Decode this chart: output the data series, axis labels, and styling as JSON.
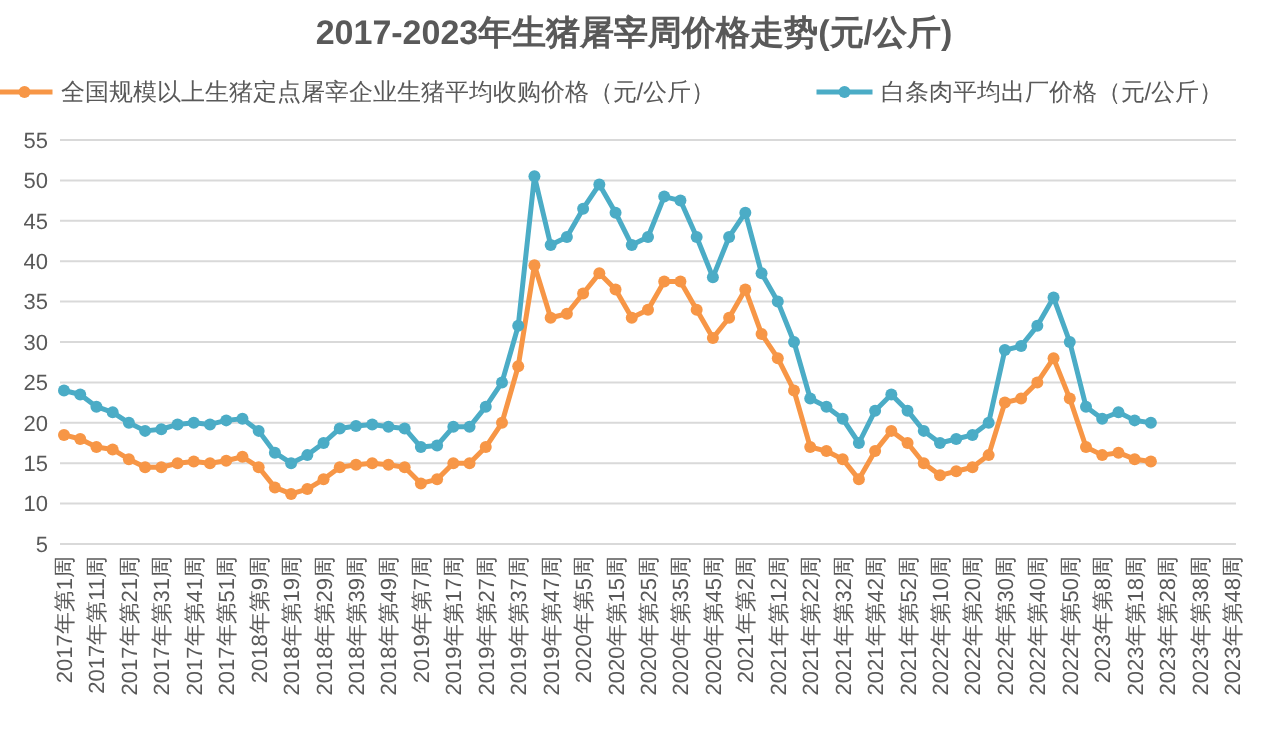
{
  "chart_data": {
    "type": "line",
    "title": "2017-2023年生猪屠宰周价格走势(元/公斤)",
    "categories": [
      "2017年第1周",
      null,
      "2017年第11周",
      null,
      "2017年第21周",
      null,
      "2017年第31周",
      null,
      "2017年第41周",
      null,
      "2017年第51周",
      null,
      "2018年第9周",
      null,
      "2018年第19周",
      null,
      "2018年第29周",
      null,
      "2018年第39周",
      null,
      "2018年第49周",
      null,
      "2019年第7周",
      null,
      "2019年第17周",
      null,
      "2019年第27周",
      null,
      "2019年第37周",
      null,
      "2019年第47周",
      null,
      "2020年第5周",
      null,
      "2020年第15周",
      null,
      "2020年第25周",
      null,
      "2020年第35周",
      null,
      "2020年第45周",
      null,
      "2021年第2周",
      null,
      "2021年第12周",
      null,
      "2021年第22周",
      null,
      "2021年第32周",
      null,
      "2021年第42周",
      null,
      "2021年第52周",
      null,
      "2022年第10周",
      null,
      "2022年第20周",
      null,
      "2022年第30周",
      null,
      "2022年第40周",
      null,
      "2022年第50周",
      null,
      "2023年第8周",
      null,
      "2023年第18周",
      null,
      "2023年第28周",
      null,
      "2023年第38周",
      null,
      "2023年第48周"
    ],
    "series": [
      {
        "name": "全国规模以上生猪定点屠宰企业生猪平均收购价格（元/公斤）",
        "color": "#f79646",
        "values": [
          18.5,
          18,
          17,
          16.7,
          15.5,
          14.5,
          14.5,
          15,
          15.2,
          15,
          15.3,
          15.8,
          14.5,
          12,
          11.2,
          11.8,
          13,
          14.5,
          14.8,
          15,
          14.8,
          14.5,
          12.5,
          13,
          15,
          15,
          17,
          20,
          27,
          39.5,
          33,
          33.5,
          36,
          38.5,
          36.5,
          33,
          34,
          37.5,
          37.5,
          34,
          30.5,
          33,
          36.5,
          31,
          28,
          24,
          17,
          16.5,
          15.5,
          13,
          16.5,
          19,
          17.5,
          15,
          13.5,
          14,
          14.5,
          16,
          22.5,
          23,
          25,
          28,
          23,
          17,
          16,
          16.3,
          15.5,
          15.2,
          null,
          null,
          null,
          null,
          null
        ]
      },
      {
        "name": "白条肉平均出厂价格（元/公斤）",
        "color": "#4bacc6",
        "values": [
          24,
          23.5,
          22,
          21.3,
          20,
          19,
          19.2,
          19.8,
          20,
          19.8,
          20.3,
          20.5,
          19,
          16.3,
          15,
          16,
          17.5,
          19.3,
          19.6,
          19.8,
          19.5,
          19.3,
          17,
          17.2,
          19.5,
          19.5,
          22,
          25,
          32,
          50.5,
          42,
          43,
          46.5,
          49.5,
          46,
          42,
          43,
          48,
          47.5,
          43,
          38,
          43,
          46,
          38.5,
          35,
          30,
          23,
          22,
          20.5,
          17.5,
          21.5,
          23.5,
          21.5,
          19,
          17.5,
          18,
          18.5,
          20,
          29,
          29.5,
          32,
          35.5,
          30,
          22,
          20.5,
          21.3,
          20.3,
          20,
          null,
          null,
          null,
          null,
          null
        ]
      }
    ],
    "ylim": [
      5,
      55
    ],
    "yticks": [
      5,
      10,
      15,
      20,
      25,
      30,
      35,
      40,
      45,
      50,
      55
    ],
    "grid": "y",
    "legend": "top",
    "marker": "circle",
    "line_style": "solid"
  }
}
